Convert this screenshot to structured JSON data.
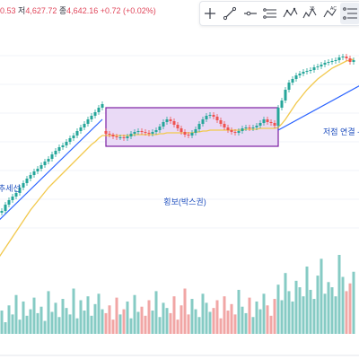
{
  "header": {
    "open_value": "0.53",
    "low_label": "저",
    "low_value": "4,627.72",
    "close_label": "종",
    "close_value": "4,642.16",
    "change": "+0.72 (+0.02%)"
  },
  "toolbar": {
    "tools": [
      "cursor-icon",
      "trend-line-icon",
      "horizontal-ray-icon",
      "parallel-channel-icon",
      "xabcd-pattern-icon",
      "elliott-wave-icon",
      "abcd-pattern-icon",
      "fib-retracement-icon"
    ]
  },
  "colors": {
    "up": "#26a69a",
    "down": "#ef5350",
    "volume_up": "#86cbc4",
    "volume_down": "#f1a6a5",
    "trendline": "#2962ff",
    "moving_average": "#f2c94c",
    "box_fill": "#e6d4f5",
    "box_border": "#7b1fa2",
    "label_text": "#1f4fbf"
  },
  "annotations": {
    "uptrend_label": "추세선",
    "box_label": "횡보(박스권)",
    "lows_label": "저점 연결 -"
  },
  "chart_data": {
    "type": "candlestick",
    "x": [
      1,
      2,
      3,
      4,
      5,
      6,
      7,
      8,
      9,
      10,
      11,
      12,
      13,
      14,
      15,
      16,
      17,
      18,
      19,
      20,
      21,
      22,
      23,
      24,
      25,
      26,
      27,
      28,
      29,
      30,
      31,
      32,
      33,
      34,
      35,
      36,
      37,
      38,
      39,
      40,
      41,
      42,
      43,
      44,
      45,
      46,
      47,
      48,
      49,
      50,
      51,
      52,
      53,
      54,
      55,
      56,
      57,
      58,
      59,
      60,
      61,
      62,
      63,
      64,
      65,
      66,
      67,
      68,
      69,
      70,
      71,
      72,
      73,
      74,
      75,
      76,
      77,
      78,
      79,
      80,
      81,
      82,
      83,
      84,
      85,
      86,
      87,
      88,
      89,
      90,
      91,
      92,
      93,
      94,
      95,
      96,
      97,
      98,
      99,
      100
    ],
    "open": [
      4516,
      4521,
      4523,
      4530,
      4535,
      4539,
      4543,
      4549,
      4554,
      4559,
      4563,
      4567,
      4570,
      4574,
      4578,
      4581,
      4586,
      4590,
      4594,
      4596,
      4600,
      4604,
      4607,
      4612,
      4616,
      4620,
      4625,
      4629,
      4633,
      4638,
      4612,
      4609,
      4608,
      4606,
      4605,
      4605,
      4604,
      4606,
      4609,
      4611,
      4612,
      4611,
      4610,
      4609,
      4611,
      4613,
      4617,
      4622,
      4625,
      4623,
      4619,
      4615,
      4611,
      4608,
      4607,
      4610,
      4614,
      4620,
      4625,
      4629,
      4630,
      4628,
      4624,
      4620,
      4616,
      4613,
      4611,
      4610,
      4612,
      4615,
      4616,
      4615,
      4616,
      4618,
      4621,
      4625,
      4622,
      4621,
      4618,
      4638,
      4646,
      4658,
      4666,
      4670,
      4674,
      4676,
      4678,
      4679,
      4680,
      4683,
      4684,
      4686,
      4688,
      4689,
      4690,
      4691,
      4694,
      4695,
      4693,
      4689
    ],
    "close": [
      4521,
      4523,
      4530,
      4535,
      4539,
      4543,
      4549,
      4554,
      4559,
      4563,
      4567,
      4570,
      4574,
      4578,
      4581,
      4586,
      4590,
      4594,
      4596,
      4600,
      4604,
      4607,
      4612,
      4616,
      4620,
      4625,
      4629,
      4633,
      4638,
      4642,
      4609,
      4608,
      4606,
      4605,
      4605,
      4604,
      4606,
      4609,
      4611,
      4612,
      4611,
      4610,
      4609,
      4611,
      4613,
      4617,
      4622,
      4625,
      4623,
      4619,
      4615,
      4611,
      4608,
      4607,
      4610,
      4614,
      4620,
      4625,
      4629,
      4630,
      4628,
      4624,
      4620,
      4616,
      4613,
      4611,
      4610,
      4612,
      4615,
      4616,
      4615,
      4616,
      4618,
      4621,
      4625,
      4622,
      4621,
      4618,
      4638,
      4646,
      4658,
      4666,
      4670,
      4674,
      4676,
      4678,
      4679,
      4680,
      4683,
      4684,
      4686,
      4688,
      4689,
      4690,
      4691,
      4694,
      4695,
      4693,
      4689,
      4691
    ],
    "high": [
      4524,
      4526,
      4533,
      4538,
      4542,
      4546,
      4552,
      4557,
      4562,
      4566,
      4570,
      4573,
      4577,
      4581,
      4584,
      4589,
      4593,
      4597,
      4599,
      4603,
      4607,
      4610,
      4615,
      4619,
      4623,
      4628,
      4632,
      4636,
      4641,
      4645,
      4615,
      4612,
      4610,
      4609,
      4608,
      4608,
      4609,
      4612,
      4614,
      4615,
      4615,
      4614,
      4613,
      4614,
      4616,
      4620,
      4625,
      4628,
      4628,
      4626,
      4622,
      4618,
      4614,
      4611,
      4613,
      4617,
      4623,
      4628,
      4632,
      4633,
      4633,
      4631,
      4627,
      4623,
      4619,
      4616,
      4614,
      4615,
      4618,
      4619,
      4619,
      4619,
      4621,
      4624,
      4628,
      4628,
      4625,
      4624,
      4641,
      4649,
      4661,
      4669,
      4673,
      4677,
      4679,
      4681,
      4682,
      4683,
      4686,
      4687,
      4689,
      4691,
      4692,
      4693,
      4694,
      4697,
      4698,
      4698,
      4696,
      4694
    ],
    "low": [
      4513,
      4518,
      4520,
      4527,
      4532,
      4536,
      4540,
      4546,
      4551,
      4556,
      4560,
      4564,
      4567,
      4571,
      4575,
      4578,
      4583,
      4587,
      4591,
      4593,
      4597,
      4601,
      4604,
      4609,
      4613,
      4617,
      4622,
      4626,
      4630,
      4635,
      4606,
      4605,
      4603,
      4602,
      4602,
      4601,
      4601,
      4603,
      4606,
      4608,
      4608,
      4607,
      4606,
      4606,
      4608,
      4610,
      4614,
      4619,
      4620,
      4616,
      4612,
      4608,
      4605,
      4604,
      4604,
      4607,
      4611,
      4617,
      4622,
      4626,
      4625,
      4621,
      4617,
      4613,
      4610,
      4608,
      4607,
      4607,
      4609,
      4612,
      4612,
      4612,
      4613,
      4615,
      4618,
      4619,
      4618,
      4615,
      4615,
      4635,
      4643,
      4655,
      4663,
      4667,
      4671,
      4673,
      4675,
      4676,
      4677,
      4680,
      4681,
      4683,
      4685,
      4686,
      4687,
      4688,
      4691,
      4690,
      4686,
      4686
    ],
    "volume": [
      12,
      18,
      9,
      22,
      15,
      30,
      11,
      25,
      14,
      19,
      28,
      16,
      21,
      10,
      33,
      17,
      24,
      13,
      27,
      20,
      15,
      35,
      12,
      26,
      18,
      29,
      14,
      23,
      31,
      19,
      16,
      22,
      11,
      28,
      15,
      19,
      25,
      12,
      30,
      17,
      21,
      14,
      26,
      18,
      33,
      13,
      24,
      20,
      16,
      29,
      11,
      22,
      35,
      15,
      27,
      19,
      13,
      31,
      24,
      17,
      20,
      26,
      12,
      29,
      18,
      23,
      15,
      34,
      21,
      16,
      28,
      13,
      25,
      19,
      31,
      22,
      14,
      27,
      38,
      26,
      47,
      33,
      25,
      41,
      36,
      29,
      52,
      34,
      27,
      45,
      58,
      31,
      40,
      36,
      29,
      61,
      44,
      33,
      39,
      48
    ],
    "moving_average": [
      4470,
      4476,
      4482,
      4488,
      4494,
      4500,
      4506,
      4512,
      4518,
      4524,
      4529,
      4534,
      4539,
      4544,
      4549,
      4553,
      4557,
      4561,
      4565,
      4569,
      4573,
      4577,
      4581,
      4585,
      4589,
      4593,
      4597,
      4600,
      4604,
      4607,
      4607,
      4607,
      4607,
      4607,
      4607,
      4607,
      4607,
      4607,
      4608,
      4608,
      4608,
      4608,
      4608,
      4608,
      4608,
      4609,
      4609,
      4610,
      4610,
      4610,
      4610,
      4610,
      4610,
      4610,
      4610,
      4611,
      4611,
      4612,
      4612,
      4613,
      4613,
      4613,
      4613,
      4613,
      4613,
      4613,
      4613,
      4613,
      4613,
      4614,
      4614,
      4614,
      4614,
      4615,
      4615,
      4615,
      4615,
      4615,
      4616,
      4620,
      4625,
      4631,
      4637,
      4643,
      4648,
      4653,
      4658,
      4662,
      4666,
      4670,
      4673,
      4676,
      4679,
      4682,
      4684,
      4686,
      4688,
      4690,
      4691,
      4692
    ],
    "trendlines": [
      {
        "label": "추세선",
        "from": {
          "x": -2,
          "y": 4500
        },
        "to": {
          "x": 30,
          "y": 4625
        }
      },
      {
        "label": "저점 연결 -",
        "from": {
          "x": 79,
          "y": 4613
        },
        "to": {
          "x": 106,
          "y": 4672
        }
      }
    ],
    "box": {
      "label": "횡보(박스권)",
      "x0": 31,
      "x1": 79,
      "y_low": 4595,
      "y_high": 4638
    },
    "ylim": [
      4486,
      4728
    ]
  }
}
